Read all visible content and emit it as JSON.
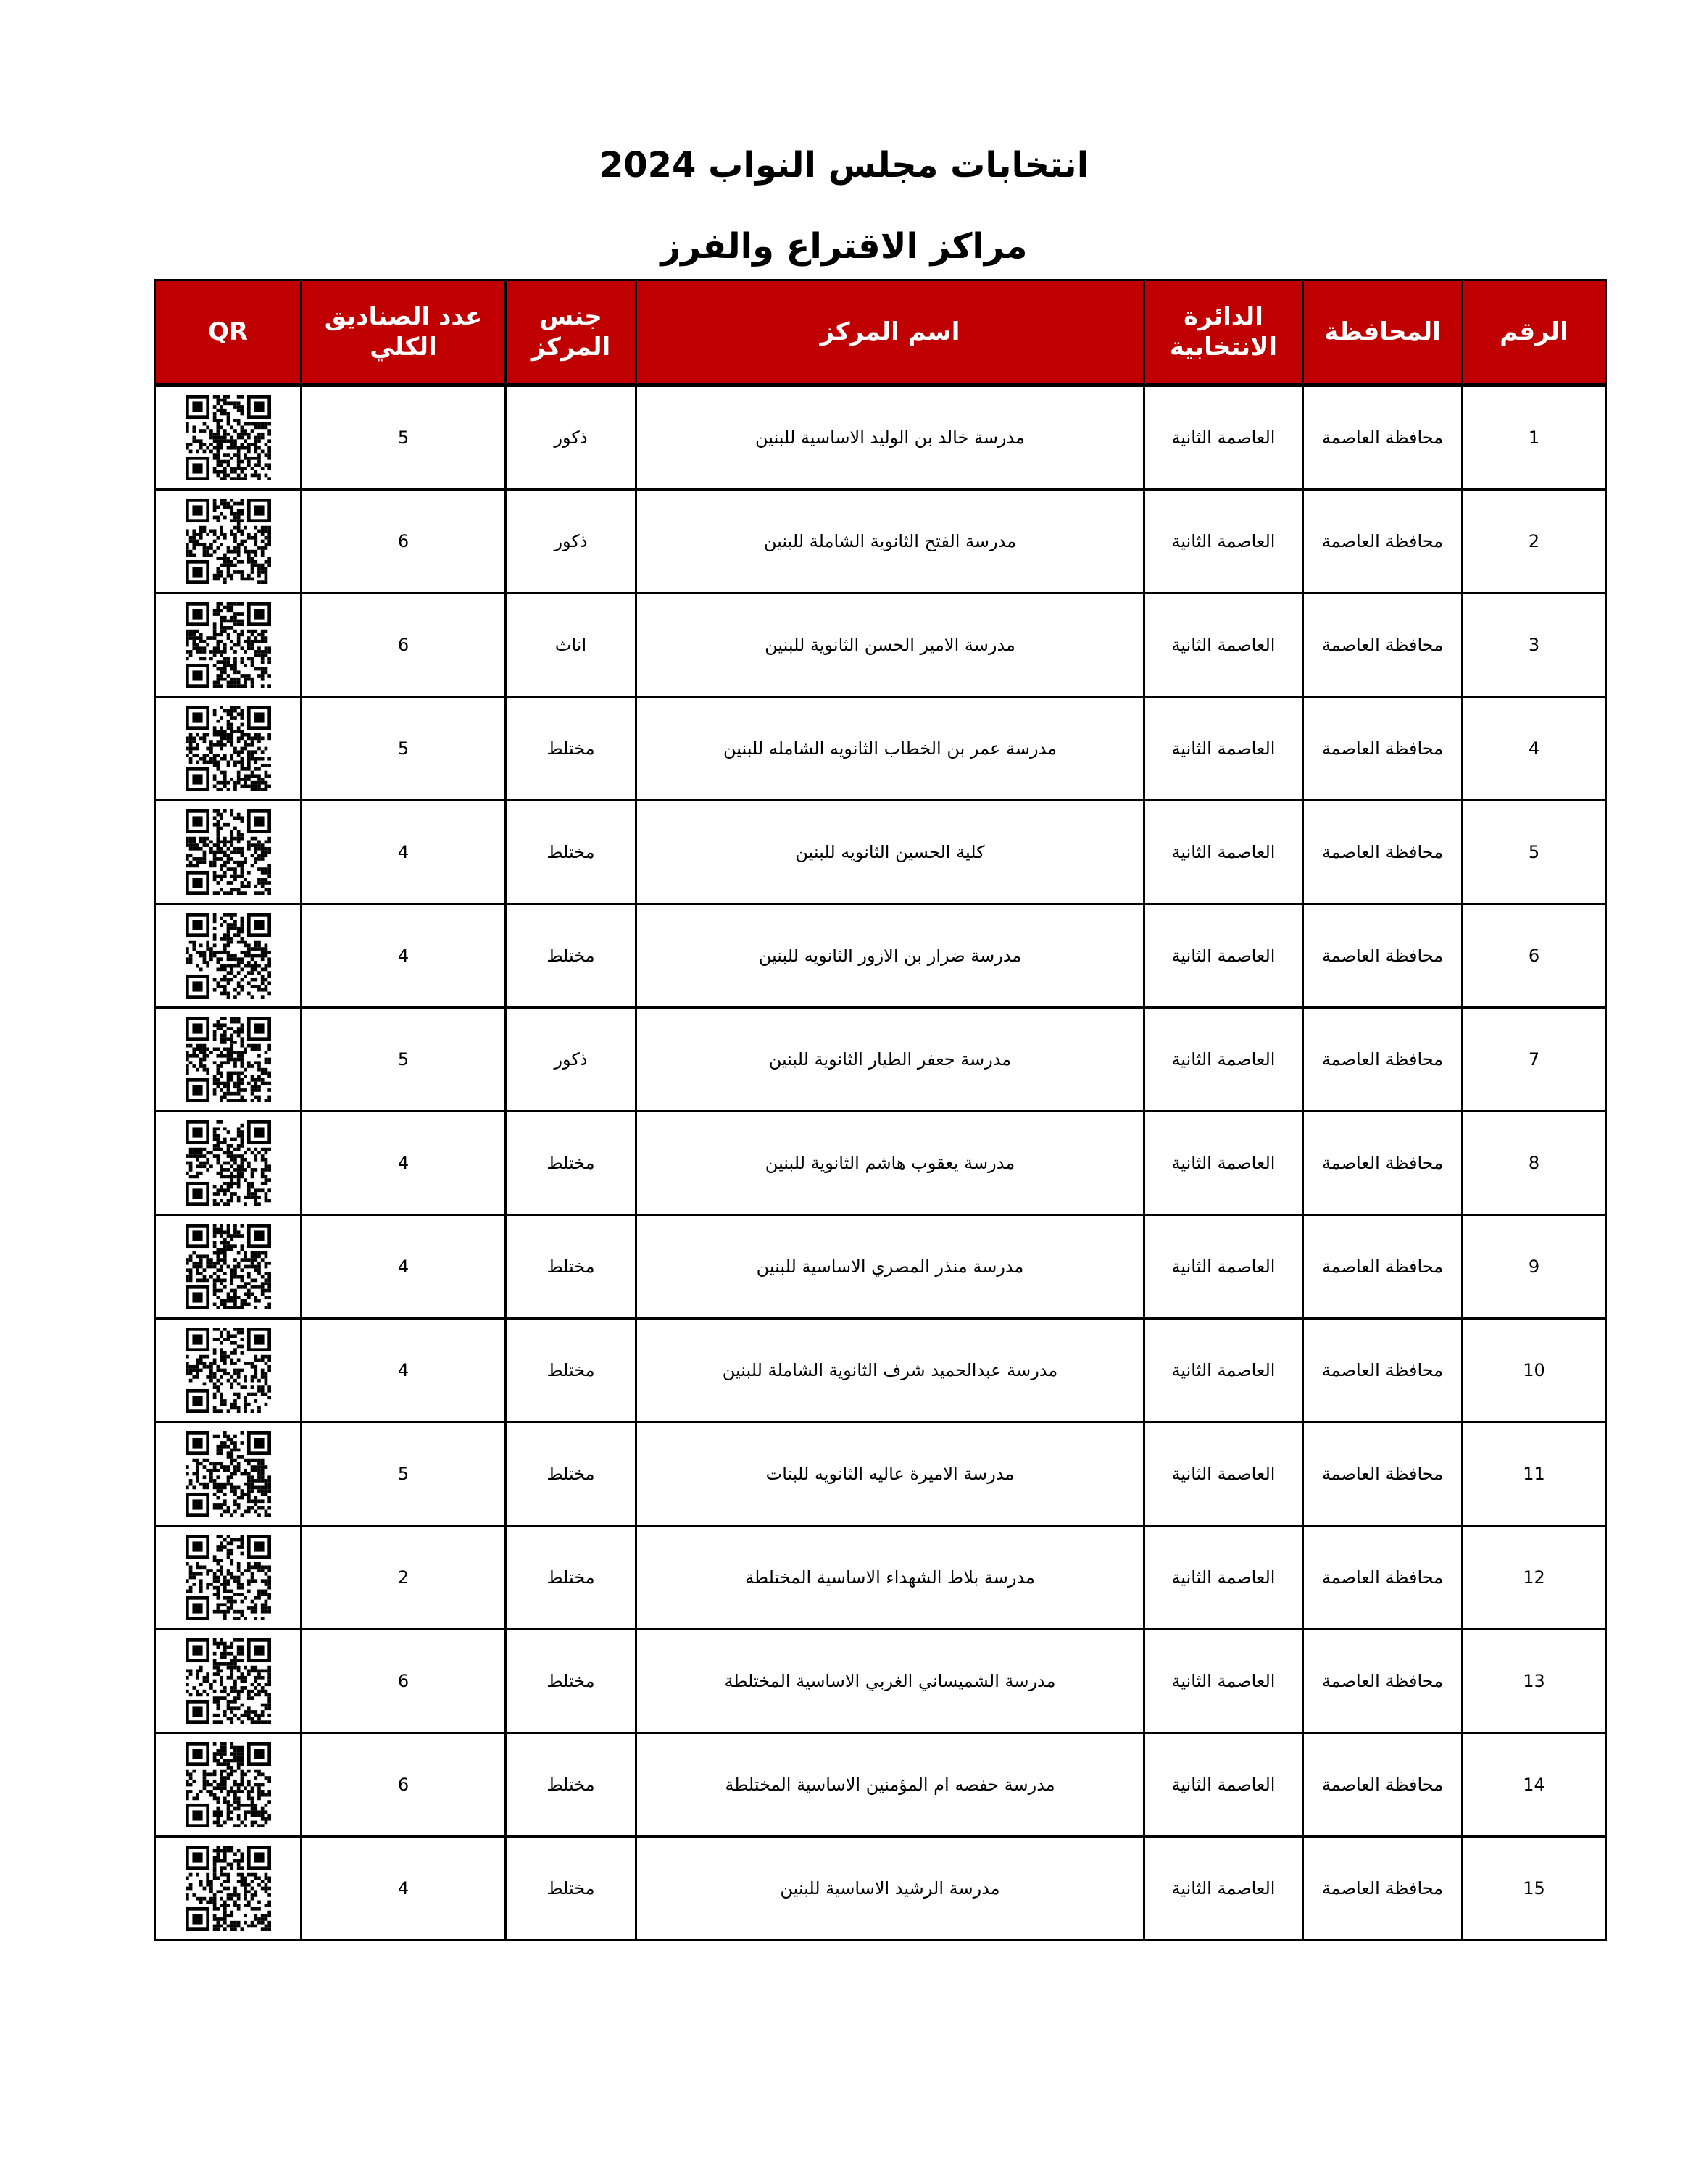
{
  "title": "انتخابات مجلس النواب 2024",
  "subtitle": "مراكز الاقتراع والفرز",
  "colors": {
    "header_bg": "#c00000",
    "header_text": "#ffffff"
  },
  "columns": [
    "الرقم",
    "المحافظة",
    "الدائرة الانتخابية",
    "اسم المركز",
    "جنس المركز",
    "عدد الصناديق الكلي",
    "QR"
  ],
  "rows": [
    {
      "no": "1",
      "gov": "محافظة العاصمة",
      "district": "العاصمة الثانية",
      "name": "مدرسة خالد بن الوليد الاساسية للبنين",
      "gender": "ذكور",
      "boxes": "5",
      "qr": "qr-code-icon"
    },
    {
      "no": "2",
      "gov": "محافظة العاصمة",
      "district": "العاصمة الثانية",
      "name": "مدرسة الفتح الثانوية الشاملة للبنين",
      "gender": "ذكور",
      "boxes": "6",
      "qr": "qr-code-icon"
    },
    {
      "no": "3",
      "gov": "محافظة العاصمة",
      "district": "العاصمة الثانية",
      "name": "مدرسة الامير الحسن الثانوية للبنين",
      "gender": "اناث",
      "boxes": "6",
      "qr": "qr-code-icon"
    },
    {
      "no": "4",
      "gov": "محافظة العاصمة",
      "district": "العاصمة الثانية",
      "name": "مدرسة عمر بن الخطاب الثانويه الشامله للبنين",
      "gender": "مختلط",
      "boxes": "5",
      "qr": "qr-code-icon"
    },
    {
      "no": "5",
      "gov": "محافظة العاصمة",
      "district": "العاصمة الثانية",
      "name": "كلية الحسين الثانويه للبنين",
      "gender": "مختلط",
      "boxes": "4",
      "qr": "qr-code-icon"
    },
    {
      "no": "6",
      "gov": "محافظة العاصمة",
      "district": "العاصمة الثانية",
      "name": "مدرسة ضرار بن الازور الثانويه للبنين",
      "gender": "مختلط",
      "boxes": "4",
      "qr": "qr-code-icon"
    },
    {
      "no": "7",
      "gov": "محافظة العاصمة",
      "district": "العاصمة الثانية",
      "name": "مدرسة جعفر الطيار الثانوية للبنين",
      "gender": "ذكور",
      "boxes": "5",
      "qr": "qr-code-icon"
    },
    {
      "no": "8",
      "gov": "محافظة العاصمة",
      "district": "العاصمة الثانية",
      "name": "مدرسة يعقوب هاشم الثانوية للبنين",
      "gender": "مختلط",
      "boxes": "4",
      "qr": "qr-code-icon"
    },
    {
      "no": "9",
      "gov": "محافظة العاصمة",
      "district": "العاصمة الثانية",
      "name": "مدرسة منذر المصري الاساسية للبنين",
      "gender": "مختلط",
      "boxes": "4",
      "qr": "qr-code-icon"
    },
    {
      "no": "10",
      "gov": "محافظة العاصمة",
      "district": "العاصمة الثانية",
      "name": "مدرسة عبدالحميد شرف الثانوية الشاملة للبنين",
      "gender": "مختلط",
      "boxes": "4",
      "qr": "qr-code-icon"
    },
    {
      "no": "11",
      "gov": "محافظة العاصمة",
      "district": "العاصمة الثانية",
      "name": "مدرسة الاميرة عاليه الثانويه للبنات",
      "gender": "مختلط",
      "boxes": "5",
      "qr": "qr-code-icon"
    },
    {
      "no": "12",
      "gov": "محافظة العاصمة",
      "district": "العاصمة الثانية",
      "name": "مدرسة بلاط الشهداء الاساسية المختلطة",
      "gender": "مختلط",
      "boxes": "2",
      "qr": "qr-code-icon"
    },
    {
      "no": "13",
      "gov": "محافظة العاصمة",
      "district": "العاصمة الثانية",
      "name": "مدرسة الشميساني الغربي الاساسية المختلطة",
      "gender": "مختلط",
      "boxes": "6",
      "qr": "qr-code-icon"
    },
    {
      "no": "14",
      "gov": "محافظة العاصمة",
      "district": "العاصمة الثانية",
      "name": "مدرسة حفصه ام المؤمنين الاساسية المختلطة",
      "gender": "مختلط",
      "boxes": "6",
      "qr": "qr-code-icon"
    },
    {
      "no": "15",
      "gov": "محافظة العاصمة",
      "district": "العاصمة الثانية",
      "name": "مدرسة الرشيد الاساسية للبنين",
      "gender": "مختلط",
      "boxes": "4",
      "qr": "qr-code-icon"
    }
  ]
}
